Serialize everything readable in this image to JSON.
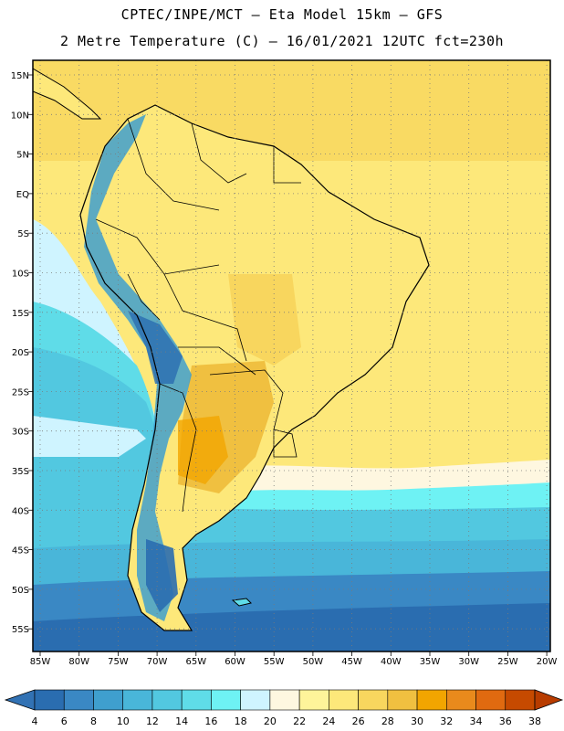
{
  "header": {
    "line1": "CPTEC/INPE/MCT —  Eta Model 15km — GFS",
    "line2": "2 Metre Temperature (C) — 16/01/2021 12UTC fct=230h"
  },
  "map": {
    "lat_labels": [
      "15N",
      "10N",
      "5N",
      "EQ",
      "5S",
      "10S",
      "15S",
      "20S",
      "25S",
      "30S",
      "35S",
      "40S",
      "45S",
      "50S",
      "55S"
    ],
    "lon_labels": [
      "85W",
      "80W",
      "75W",
      "70W",
      "65W",
      "60W",
      "55W",
      "50W",
      "45W",
      "40W",
      "35W",
      "30W",
      "25W",
      "20W"
    ]
  },
  "colorbar": {
    "colors": [
      "#2a6db0",
      "#3a88c4",
      "#3f9fce",
      "#49b6d9",
      "#52c8e0",
      "#5fdce8",
      "#6ef2f4",
      "#cff4ff",
      "#fef7e0",
      "#fef49a",
      "#fde87a",
      "#f8d65e",
      "#f0c040",
      "#f2a500",
      "#e98a1c",
      "#e06a10",
      "#c64a00"
    ],
    "end_low": "#3272b4",
    "end_high": "#b83c00",
    "labels": [
      "4",
      "6",
      "8",
      "10",
      "12",
      "14",
      "16",
      "18",
      "20",
      "22",
      "24",
      "26",
      "28",
      "30",
      "32",
      "34",
      "36",
      "38"
    ]
  }
}
